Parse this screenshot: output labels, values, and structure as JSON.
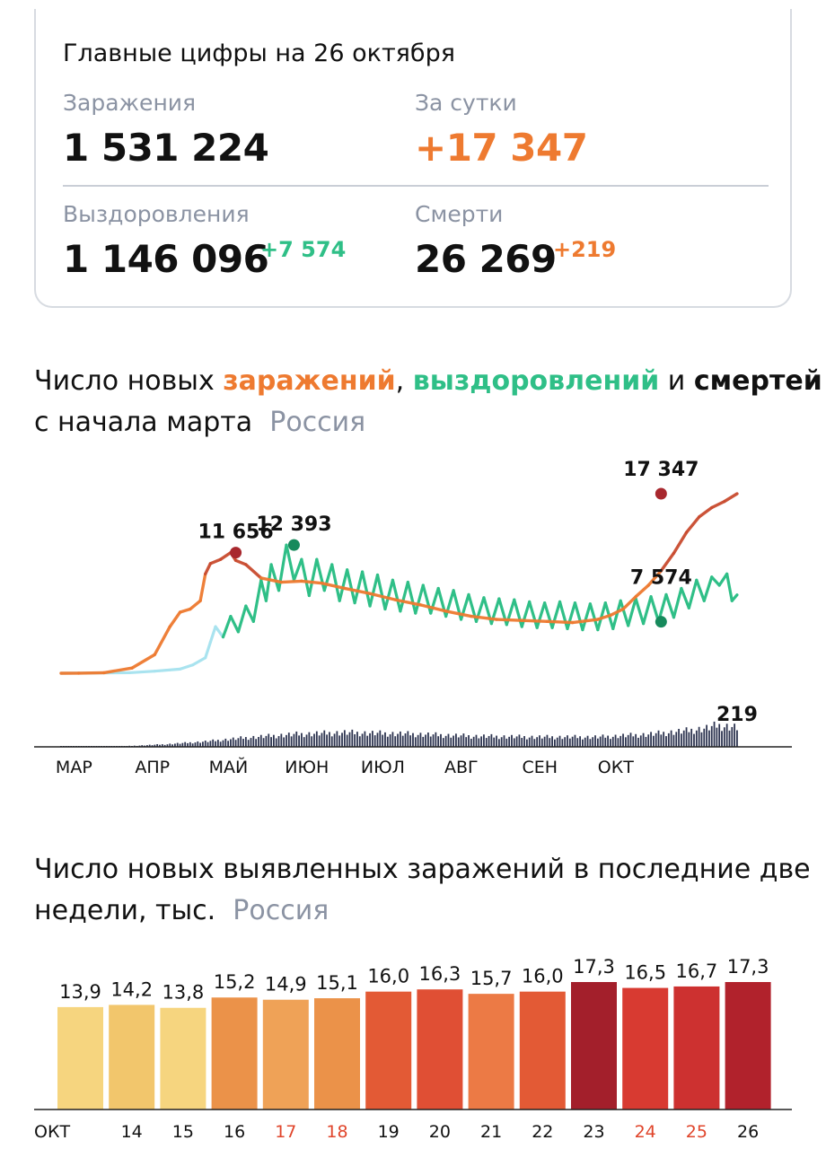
{
  "summary": {
    "title": "Главные цифры на 26 октября",
    "infections": {
      "label": "Заражения",
      "value": "1 531 224"
    },
    "daily": {
      "label": "За сутки",
      "value": "+17 347"
    },
    "recoveries": {
      "label": "Выздоровления",
      "value": "1 146 096",
      "delta": "+7 574"
    },
    "deaths": {
      "label": "Смерти",
      "value": "26 269",
      "delta": "+219"
    }
  },
  "line_section": {
    "title_part1": "Число новых ",
    "title_infections": "заражений",
    "title_part2": ", ",
    "title_recoveries": "выздоровлений",
    "title_part3": " и ",
    "title_deaths": "смертей",
    "title_line2": "с начала марта",
    "region": "Россия"
  },
  "bar_section": {
    "title_line1": "Число новых выявленных заражений в последние две",
    "title_line2": "недели, тыс.",
    "region": "Россия"
  },
  "colors": {
    "infections": "#ee7a30",
    "infections_peak": "#a8282e",
    "recoveries": "#2fbf87",
    "recoveries_light": "#a9e3ef",
    "deaths": "#2d3450",
    "weekend": "#e0452b"
  },
  "chart_data": [
    {
      "type": "line",
      "title": "Число новых заражений, выздоровлений и смертей с начала марта",
      "x_labels": [
        "МАР",
        "АПР",
        "МАЙ",
        "ИЮН",
        "ИЮЛ",
        "АВГ",
        "СЕН",
        "ОКТ"
      ],
      "annotations": [
        {
          "series": "infections",
          "date": "2020-05-11",
          "value": 11656,
          "label": "11 656"
        },
        {
          "series": "recoveries",
          "date": "2020-06-03",
          "value": 12393,
          "label": "12 393"
        },
        {
          "series": "infections",
          "date": "2020-10-26",
          "value": 17347,
          "label": "17 347"
        },
        {
          "series": "recoveries",
          "date": "2020-10-26",
          "value": 7574,
          "label": "7 574"
        },
        {
          "series": "deaths",
          "date": "2020-10-26",
          "value": 219,
          "label": "219"
        }
      ],
      "series": [
        {
          "name": "заражений",
          "key": "infections",
          "values": [
            [
              3,
              0
            ],
            [
              10,
              5
            ],
            [
              20,
              50
            ],
            [
              31,
              500
            ],
            [
              40,
              1800
            ],
            [
              46,
              4500
            ],
            [
              50,
              5900
            ],
            [
              54,
              6200
            ],
            [
              58,
              7000
            ],
            [
              60,
              9600
            ],
            [
              62,
              10600
            ],
            [
              66,
              11000
            ],
            [
              70,
              11656
            ],
            [
              72,
              10900
            ],
            [
              76,
              10500
            ],
            [
              82,
              9200
            ],
            [
              90,
              8800
            ],
            [
              98,
              8900
            ],
            [
              106,
              8700
            ],
            [
              115,
              8200
            ],
            [
              125,
              7700
            ],
            [
              135,
              7100
            ],
            [
              145,
              6600
            ],
            [
              155,
              6000
            ],
            [
              165,
              5500
            ],
            [
              175,
              5200
            ],
            [
              185,
              5100
            ],
            [
              195,
              5000
            ],
            [
              205,
              4900
            ],
            [
              215,
              5200
            ],
            [
              220,
              5600
            ],
            [
              225,
              6200
            ],
            [
              230,
              7400
            ],
            [
              235,
              8500
            ],
            [
              240,
              9900
            ],
            [
              245,
              11600
            ],
            [
              250,
              13600
            ],
            [
              255,
              15100
            ],
            [
              260,
              16000
            ],
            [
              265,
              16600
            ],
            [
              270,
              17347
            ]
          ]
        },
        {
          "name": "выздоровлений",
          "key": "recoveries",
          "values": [
            [
              3,
              0
            ],
            [
              30,
              50
            ],
            [
              40,
              200
            ],
            [
              50,
              400
            ],
            [
              55,
              800
            ],
            [
              60,
              1500
            ],
            [
              62,
              3000
            ],
            [
              64,
              4500
            ],
            [
              67,
              3500
            ],
            [
              70,
              5500
            ],
            [
              73,
              4000
            ],
            [
              76,
              6500
            ],
            [
              79,
              5000
            ],
            [
              82,
              9000
            ],
            [
              84,
              7000
            ],
            [
              86,
              10500
            ],
            [
              89,
              8000
            ],
            [
              92,
              12393
            ],
            [
              95,
              9000
            ],
            [
              98,
              11000
            ],
            [
              101,
              7500
            ],
            [
              104,
              11000
            ],
            [
              107,
              8000
            ],
            [
              110,
              10500
            ],
            [
              113,
              7000
            ],
            [
              116,
              10000
            ],
            [
              119,
              6800
            ],
            [
              122,
              9800
            ],
            [
              125,
              6500
            ],
            [
              128,
              9500
            ],
            [
              131,
              6200
            ],
            [
              134,
              9000
            ],
            [
              137,
              6000
            ],
            [
              140,
              8800
            ],
            [
              143,
              5800
            ],
            [
              146,
              8500
            ],
            [
              149,
              5800
            ],
            [
              152,
              8200
            ],
            [
              155,
              5500
            ],
            [
              158,
              8000
            ],
            [
              161,
              5200
            ],
            [
              164,
              7600
            ],
            [
              167,
              5000
            ],
            [
              170,
              7300
            ],
            [
              173,
              4800
            ],
            [
              176,
              7200
            ],
            [
              179,
              4700
            ],
            [
              182,
              7100
            ],
            [
              185,
              4500
            ],
            [
              188,
              6900
            ],
            [
              191,
              4400
            ],
            [
              194,
              6800
            ],
            [
              197,
              4400
            ],
            [
              200,
              6900
            ],
            [
              203,
              4300
            ],
            [
              206,
              6800
            ],
            [
              209,
              4200
            ],
            [
              212,
              6700
            ],
            [
              215,
              4200
            ],
            [
              218,
              6800
            ],
            [
              221,
              4300
            ],
            [
              224,
              7000
            ],
            [
              227,
              4600
            ],
            [
              230,
              7200
            ],
            [
              233,
              4800
            ],
            [
              236,
              7400
            ],
            [
              239,
              5000
            ],
            [
              242,
              7600
            ],
            [
              245,
              5400
            ],
            [
              248,
              8200
            ],
            [
              251,
              6300
            ],
            [
              254,
              9000
            ],
            [
              257,
              7000
            ],
            [
              260,
              9300
            ],
            [
              263,
              8500
            ],
            [
              266,
              9600
            ],
            [
              268,
              7000
            ],
            [
              270,
              7574
            ]
          ]
        },
        {
          "name": "смертей",
          "key": "deaths",
          "values": [
            [
              3,
              0
            ],
            [
              30,
              10
            ],
            [
              45,
              30
            ],
            [
              60,
              60
            ],
            [
              75,
              100
            ],
            [
              95,
              140
            ],
            [
              115,
              160
            ],
            [
              140,
              145
            ],
            [
              165,
              120
            ],
            [
              190,
              110
            ],
            [
              215,
              110
            ],
            [
              235,
              140
            ],
            [
              250,
              180
            ],
            [
              258,
              210
            ],
            [
              262,
              240
            ],
            [
              266,
              230
            ],
            [
              270,
              219
            ]
          ]
        }
      ]
    },
    {
      "type": "bar",
      "title": "Число новых выявленных заражений в последние две недели, тыс.",
      "categories": [
        "ОКТ",
        "14",
        "15",
        "16",
        "17",
        "18",
        "19",
        "20",
        "21",
        "22",
        "23",
        "24",
        "25",
        "26"
      ],
      "values": [
        13.9,
        14.2,
        13.8,
        15.2,
        14.9,
        15.1,
        16.0,
        16.3,
        15.7,
        16.0,
        17.3,
        16.5,
        16.7,
        17.3
      ],
      "value_labels": [
        "13,9",
        "14,2",
        "13,8",
        "15,2",
        "14,9",
        "15,1",
        "16,0",
        "16,3",
        "15,7",
        "16,0",
        "17,3",
        "16,5",
        "16,7",
        "17,3"
      ],
      "bar_colors": [
        "#f6d57f",
        "#f2c66c",
        "#f6d57f",
        "#eb9249",
        "#efa257",
        "#eb9249",
        "#e35a35",
        "#e04f34",
        "#ec7a45",
        "#e35a35",
        "#a31f2b",
        "#d83a31",
        "#cd3130",
        "#b1222c"
      ],
      "tick_colors": [
        "#111111",
        "#111111",
        "#111111",
        "#111111",
        "#e0452b",
        "#e0452b",
        "#111111",
        "#111111",
        "#111111",
        "#111111",
        "#111111",
        "#e0452b",
        "#e0452b",
        "#111111"
      ],
      "ylim": [
        0,
        17.3
      ]
    }
  ]
}
